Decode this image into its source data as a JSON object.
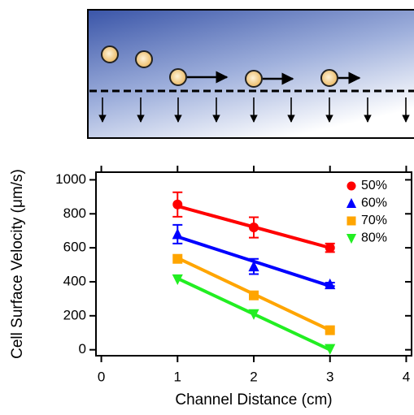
{
  "chart_data": {
    "type": "scatter",
    "xlabel": "Channel Distance (cm)",
    "ylabel": "Cell Surface Velocity (μm/s)",
    "xlim": [
      -0.07,
      4.07
    ],
    "ylim": [
      -35,
      1045
    ],
    "xticks": [
      0,
      1,
      2,
      3,
      4
    ],
    "yticks": [
      0,
      200,
      400,
      600,
      800,
      1000
    ],
    "grid": false,
    "legend": "upper right",
    "x": [
      1,
      2,
      3
    ],
    "series": [
      {
        "name": "50%",
        "color": "#ff0000",
        "marker": "circle",
        "values": [
          855,
          720,
          600
        ],
        "errors": [
          72,
          60,
          25
        ],
        "fit_x": [
          1,
          3
        ],
        "fit_values": [
          845,
          600
        ]
      },
      {
        "name": "60%",
        "color": "#0000ff",
        "marker": "triangle-up",
        "values": [
          680,
          490,
          385
        ],
        "errors": [
          55,
          45,
          10
        ],
        "fit_x": [
          1,
          3
        ],
        "fit_values": [
          665,
          375
        ]
      },
      {
        "name": "70%",
        "color": "#ffa500",
        "marker": "square",
        "values": [
          535,
          320,
          115
        ],
        "fit_x": [
          1,
          3
        ],
        "fit_values": [
          540,
          115
        ]
      },
      {
        "name": "80%",
        "color": "#22ee22",
        "marker": "triangle-down",
        "values": [
          415,
          210,
          5
        ],
        "fit_x": [
          1,
          3
        ],
        "fit_values": [
          420,
          0
        ]
      }
    ]
  }
}
